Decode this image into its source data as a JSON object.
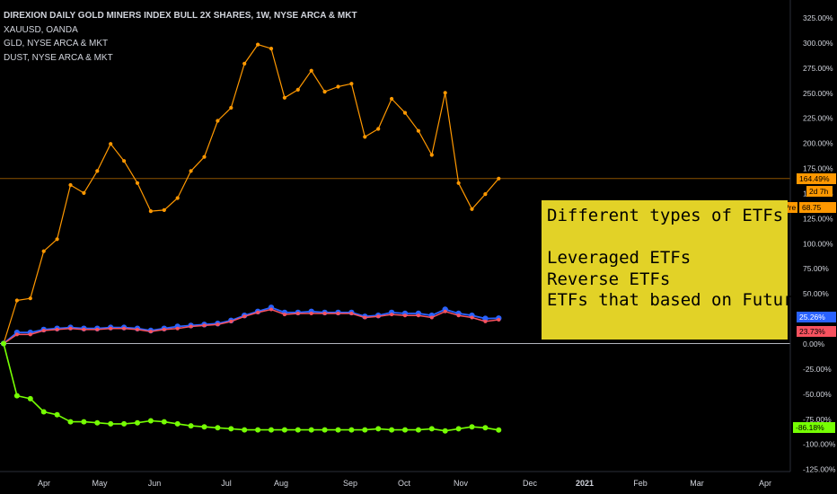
{
  "legend": {
    "title": "DIREXION DAILY GOLD MINERS INDEX BULL 2X SHARES, 1W, NYSE ARCA & MKT",
    "items": [
      "XAUUSD, OANDA",
      "GLD, NYSE ARCA & MKT",
      "DUST, NYSE ARCA & MKT"
    ]
  },
  "annotation": {
    "title": "Different types of ETFs",
    "lines": [
      "Leveraged ETFs",
      "Reverse ETFs",
      "ETFs that based on Futures"
    ]
  },
  "price_axis": {
    "ticks": [
      "325.00%",
      "300.00%",
      "275.00%",
      "250.00%",
      "225.00%",
      "200.00%",
      "175.00%",
      "150.00%",
      "125.00%",
      "100.00%",
      "75.00%",
      "50.00%",
      "25.00%",
      "0.00%",
      "-25.00%",
      "-50.00%",
      "-75.00%",
      "-100.00%",
      "-125.00%"
    ]
  },
  "badges": {
    "nugt": "164.49%",
    "countdown": "2d 7h",
    "pre_label": "Pre",
    "pre_value": "68.75",
    "xauusd": "25.26%",
    "gld": "23.73%",
    "dust": "-86.18%"
  },
  "colors": {
    "nugt": "#ff9800",
    "xauusd": "#2962ff",
    "gld": "#f7525f",
    "dust": "#76ff03",
    "annotation_bg": "#e2d227",
    "background": "#000000"
  },
  "chart_data": {
    "type": "line",
    "x": [
      "2020-03-16",
      "2020-03-23",
      "2020-03-30",
      "2020-04-06",
      "2020-04-13",
      "2020-04-20",
      "2020-04-27",
      "2020-05-04",
      "2020-05-11",
      "2020-05-18",
      "2020-05-25",
      "2020-06-01",
      "2020-06-08",
      "2020-06-15",
      "2020-06-22",
      "2020-06-29",
      "2020-07-06",
      "2020-07-13",
      "2020-07-20",
      "2020-07-27",
      "2020-08-03",
      "2020-08-10",
      "2020-08-17",
      "2020-08-24",
      "2020-08-31",
      "2020-09-07",
      "2020-09-14",
      "2020-09-21",
      "2020-09-28",
      "2020-10-05",
      "2020-10-12",
      "2020-10-19",
      "2020-10-26",
      "2020-11-02",
      "2020-11-09",
      "2020-11-16",
      "2020-11-23",
      "2020-11-30"
    ],
    "series": [
      {
        "name": "DIREXION DAILY GOLD MINERS INDEX BULL 2X SHARES",
        "values": [
          0,
          43,
          45,
          92,
          104,
          158,
          150,
          172,
          199,
          182,
          160,
          132,
          133,
          145,
          172,
          186,
          222,
          235,
          279,
          298,
          294,
          245,
          253,
          272,
          251,
          256,
          259,
          206,
          214,
          244,
          230,
          212,
          188,
          250,
          160,
          134,
          149,
          164.49
        ]
      },
      {
        "name": "XAUUSD",
        "values": [
          0,
          11,
          11,
          14,
          15,
          16,
          15,
          15,
          16,
          16,
          15,
          13,
          15,
          17,
          18,
          19,
          20,
          23,
          28,
          32,
          36,
          31,
          31,
          32,
          31,
          31,
          31,
          27,
          28,
          31,
          30,
          30,
          28,
          34,
          30,
          28,
          25,
          25.26
        ]
      },
      {
        "name": "GLD",
        "values": [
          0,
          9,
          9,
          13,
          14,
          15,
          14,
          14,
          15,
          15,
          14,
          12,
          14,
          15,
          17,
          18,
          19,
          22,
          27,
          31,
          34,
          29,
          30,
          30,
          30,
          30,
          30,
          26,
          27,
          29,
          28,
          28,
          26,
          32,
          28,
          26,
          22,
          23.73
        ]
      },
      {
        "name": "DUST",
        "values": [
          0,
          -52,
          -55,
          -68,
          -71,
          -78,
          -78,
          -79,
          -80,
          -80,
          -79,
          -77,
          -78,
          -80,
          -82,
          -83,
          -84,
          -85,
          -86,
          -86,
          -86,
          -86,
          -86,
          -86,
          -86,
          -86,
          -86,
          -86,
          -85,
          -86,
          -86,
          -86,
          -85,
          -87,
          -85,
          -83,
          -84,
          -86.18
        ]
      }
    ],
    "x_ticks": [
      "Apr",
      "May",
      "Jun",
      "Jul",
      "Aug",
      "Sep",
      "Oct",
      "Nov",
      "Dec",
      "2021",
      "Feb",
      "Mar",
      "Apr"
    ],
    "ylim": [
      -125,
      325
    ],
    "y_scale": "percent",
    "grid": false
  }
}
